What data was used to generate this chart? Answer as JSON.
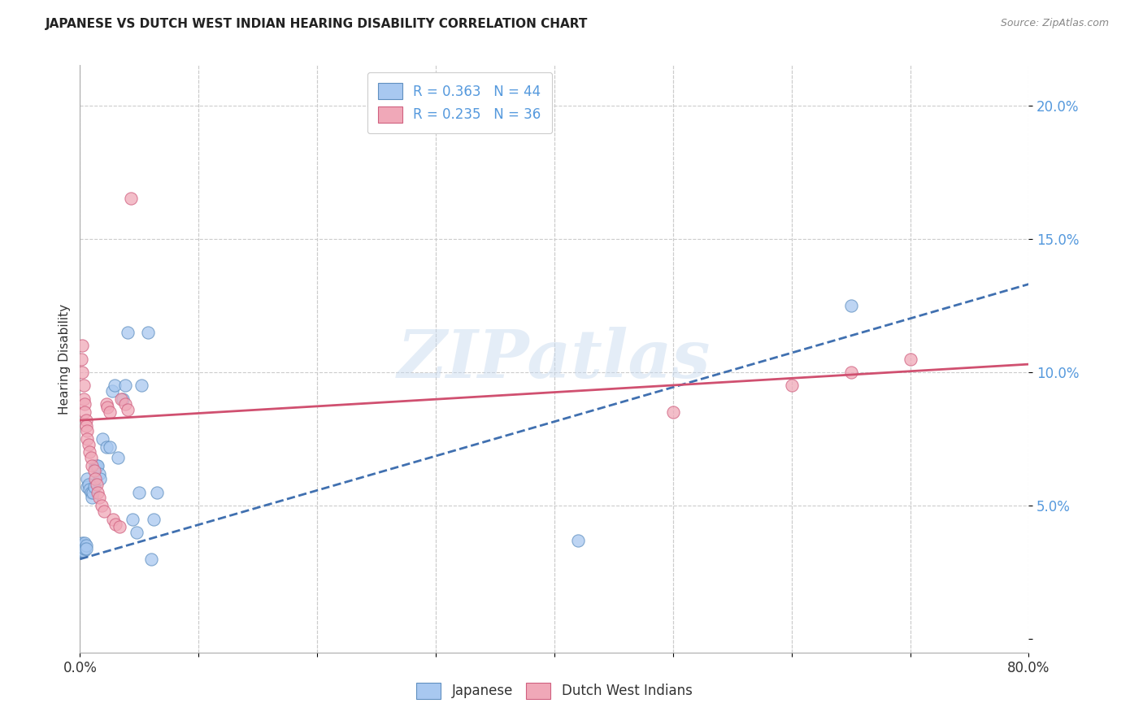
{
  "title": "JAPANESE VS DUTCH WEST INDIAN HEARING DISABILITY CORRELATION CHART",
  "source": "Source: ZipAtlas.com",
  "ylabel": "Hearing Disability",
  "yticks": [
    0.0,
    0.05,
    0.1,
    0.15,
    0.2
  ],
  "ytick_labels": [
    "",
    "5.0%",
    "10.0%",
    "15.0%",
    "20.0%"
  ],
  "xlim": [
    0.0,
    0.8
  ],
  "ylim": [
    -0.005,
    0.215
  ],
  "watermark_zip": "ZIP",
  "watermark_atlas": "atlas",
  "legend_blue_r": "R = 0.363",
  "legend_blue_n": "N = 44",
  "legend_pink_r": "R = 0.235",
  "legend_pink_n": "N = 36",
  "blue_fill": "#A8C8F0",
  "pink_fill": "#F0A8B8",
  "blue_edge": "#6090C0",
  "pink_edge": "#D06080",
  "blue_line": "#4070B0",
  "pink_line": "#D05070",
  "japanese_points": [
    [
      0.001,
      0.035
    ],
    [
      0.001,
      0.033
    ],
    [
      0.002,
      0.036
    ],
    [
      0.002,
      0.034
    ],
    [
      0.002,
      0.033
    ],
    [
      0.003,
      0.035
    ],
    [
      0.003,
      0.034
    ],
    [
      0.003,
      0.033
    ],
    [
      0.004,
      0.036
    ],
    [
      0.004,
      0.034
    ],
    [
      0.005,
      0.035
    ],
    [
      0.005,
      0.034
    ],
    [
      0.006,
      0.06
    ],
    [
      0.006,
      0.057
    ],
    [
      0.007,
      0.058
    ],
    [
      0.008,
      0.056
    ],
    [
      0.009,
      0.055
    ],
    [
      0.01,
      0.053
    ],
    [
      0.011,
      0.055
    ],
    [
      0.012,
      0.057
    ],
    [
      0.013,
      0.065
    ],
    [
      0.014,
      0.065
    ],
    [
      0.015,
      0.065
    ],
    [
      0.016,
      0.062
    ],
    [
      0.017,
      0.06
    ],
    [
      0.019,
      0.075
    ],
    [
      0.022,
      0.072
    ],
    [
      0.025,
      0.072
    ],
    [
      0.027,
      0.093
    ],
    [
      0.029,
      0.095
    ],
    [
      0.032,
      0.068
    ],
    [
      0.036,
      0.09
    ],
    [
      0.038,
      0.095
    ],
    [
      0.04,
      0.115
    ],
    [
      0.044,
      0.045
    ],
    [
      0.048,
      0.04
    ],
    [
      0.05,
      0.055
    ],
    [
      0.052,
      0.095
    ],
    [
      0.057,
      0.115
    ],
    [
      0.06,
      0.03
    ],
    [
      0.062,
      0.045
    ],
    [
      0.065,
      0.055
    ],
    [
      0.42,
      0.037
    ],
    [
      0.65,
      0.125
    ]
  ],
  "dutch_points": [
    [
      0.001,
      0.105
    ],
    [
      0.002,
      0.11
    ],
    [
      0.002,
      0.1
    ],
    [
      0.003,
      0.095
    ],
    [
      0.003,
      0.09
    ],
    [
      0.004,
      0.088
    ],
    [
      0.004,
      0.085
    ],
    [
      0.005,
      0.082
    ],
    [
      0.005,
      0.08
    ],
    [
      0.006,
      0.078
    ],
    [
      0.006,
      0.075
    ],
    [
      0.007,
      0.073
    ],
    [
      0.008,
      0.07
    ],
    [
      0.009,
      0.068
    ],
    [
      0.01,
      0.065
    ],
    [
      0.012,
      0.063
    ],
    [
      0.013,
      0.06
    ],
    [
      0.014,
      0.058
    ],
    [
      0.015,
      0.055
    ],
    [
      0.016,
      0.053
    ],
    [
      0.018,
      0.05
    ],
    [
      0.02,
      0.048
    ],
    [
      0.022,
      0.088
    ],
    [
      0.023,
      0.087
    ],
    [
      0.025,
      0.085
    ],
    [
      0.028,
      0.045
    ],
    [
      0.03,
      0.043
    ],
    [
      0.033,
      0.042
    ],
    [
      0.035,
      0.09
    ],
    [
      0.038,
      0.088
    ],
    [
      0.04,
      0.086
    ],
    [
      0.043,
      0.165
    ],
    [
      0.5,
      0.085
    ],
    [
      0.6,
      0.095
    ],
    [
      0.65,
      0.1
    ],
    [
      0.7,
      0.105
    ]
  ],
  "blue_trend_x": [
    0.0,
    0.8
  ],
  "blue_trend_y": [
    0.03,
    0.133
  ],
  "pink_trend_x": [
    0.0,
    0.8
  ],
  "pink_trend_y": [
    0.082,
    0.103
  ],
  "background_color": "#FFFFFF",
  "grid_color": "#CCCCCC",
  "title_color": "#222222",
  "source_color": "#888888",
  "ytick_color": "#5599DD",
  "ylabel_color": "#333333"
}
